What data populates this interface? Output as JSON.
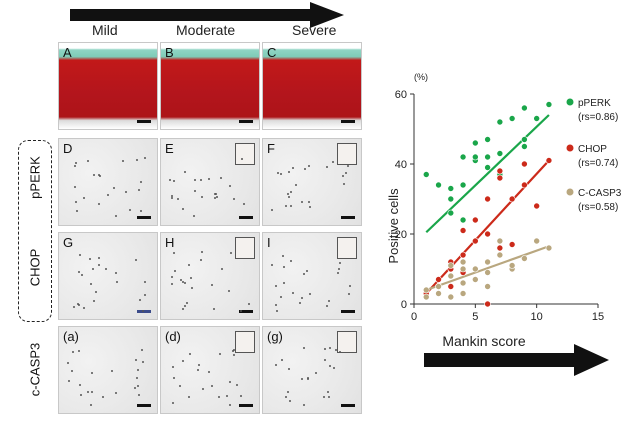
{
  "severity_labels": [
    "Mild",
    "Moderate",
    "Severe"
  ],
  "row_labels": [
    "pPERK",
    "CHOP",
    "c-CASP3"
  ],
  "panel_letters": [
    [
      "A",
      "B",
      "C"
    ],
    [
      "D",
      "E",
      "F"
    ],
    [
      "G",
      "H",
      "I"
    ],
    [
      "(a)",
      "(d)",
      "(g)"
    ]
  ],
  "chart_data": {
    "type": "scatter",
    "ylabel": "Positive cells",
    "xlabel": "Mankin score",
    "y_unit": "(%)",
    "xlim": [
      0,
      15
    ],
    "ylim": [
      0,
      60
    ],
    "xticks": [
      "0",
      "5",
      "10",
      "15"
    ],
    "yticks": [
      "0",
      "20",
      "40",
      "60"
    ],
    "colors": {
      "pPERK": "#1aa64a",
      "CHOP": "#cc2a1a",
      "C-CASP3": "#b9a77f"
    },
    "series": [
      {
        "name": "pPERK",
        "stat": "(rs=0.86)",
        "color": "#1aa64a",
        "line": [
          [
            1,
            20.5
          ],
          [
            11,
            54
          ]
        ],
        "points": [
          [
            1,
            37
          ],
          [
            2,
            34
          ],
          [
            3,
            26
          ],
          [
            3,
            30
          ],
          [
            3,
            33
          ],
          [
            4,
            24
          ],
          [
            4,
            34
          ],
          [
            4,
            42
          ],
          [
            5,
            41
          ],
          [
            5,
            42
          ],
          [
            5,
            46
          ],
          [
            6,
            39
          ],
          [
            6,
            42
          ],
          [
            6,
            47
          ],
          [
            7,
            37
          ],
          [
            7,
            43
          ],
          [
            7,
            52
          ],
          [
            8,
            53
          ],
          [
            9,
            45
          ],
          [
            9,
            47
          ],
          [
            9,
            56
          ],
          [
            10,
            53
          ],
          [
            11,
            57
          ]
        ]
      },
      {
        "name": "CHOP",
        "stat": "(rs=0.74)",
        "color": "#cc2a1a",
        "line": [
          [
            1,
            3
          ],
          [
            11,
            41
          ]
        ],
        "points": [
          [
            1,
            3
          ],
          [
            2,
            5
          ],
          [
            2,
            7
          ],
          [
            3,
            10
          ],
          [
            3,
            12
          ],
          [
            3,
            5
          ],
          [
            4,
            9
          ],
          [
            4,
            14
          ],
          [
            4,
            21
          ],
          [
            5,
            18
          ],
          [
            5,
            24
          ],
          [
            6,
            20
          ],
          [
            6,
            30
          ],
          [
            6,
            0
          ],
          [
            7,
            16
          ],
          [
            7,
            36
          ],
          [
            7,
            38
          ],
          [
            8,
            17
          ],
          [
            8,
            30
          ],
          [
            9,
            40
          ],
          [
            9,
            34
          ],
          [
            10,
            28
          ],
          [
            11,
            41
          ]
        ]
      },
      {
        "name": "C-CASP3",
        "stat": "(rs=0.58)",
        "color": "#b9a77f",
        "line": [
          [
            1,
            4
          ],
          [
            11,
            16.5
          ]
        ],
        "points": [
          [
            1,
            2
          ],
          [
            1,
            4
          ],
          [
            2,
            3
          ],
          [
            2,
            5
          ],
          [
            3,
            2
          ],
          [
            3,
            8
          ],
          [
            3,
            11
          ],
          [
            4,
            3
          ],
          [
            4,
            6
          ],
          [
            4,
            10
          ],
          [
            4,
            12
          ],
          [
            5,
            7
          ],
          [
            5,
            10
          ],
          [
            6,
            9
          ],
          [
            6,
            12
          ],
          [
            6,
            5
          ],
          [
            7,
            14
          ],
          [
            7,
            18
          ],
          [
            8,
            10
          ],
          [
            8,
            11
          ],
          [
            9,
            13
          ],
          [
            10,
            18
          ],
          [
            11,
            16
          ]
        ]
      }
    ]
  }
}
